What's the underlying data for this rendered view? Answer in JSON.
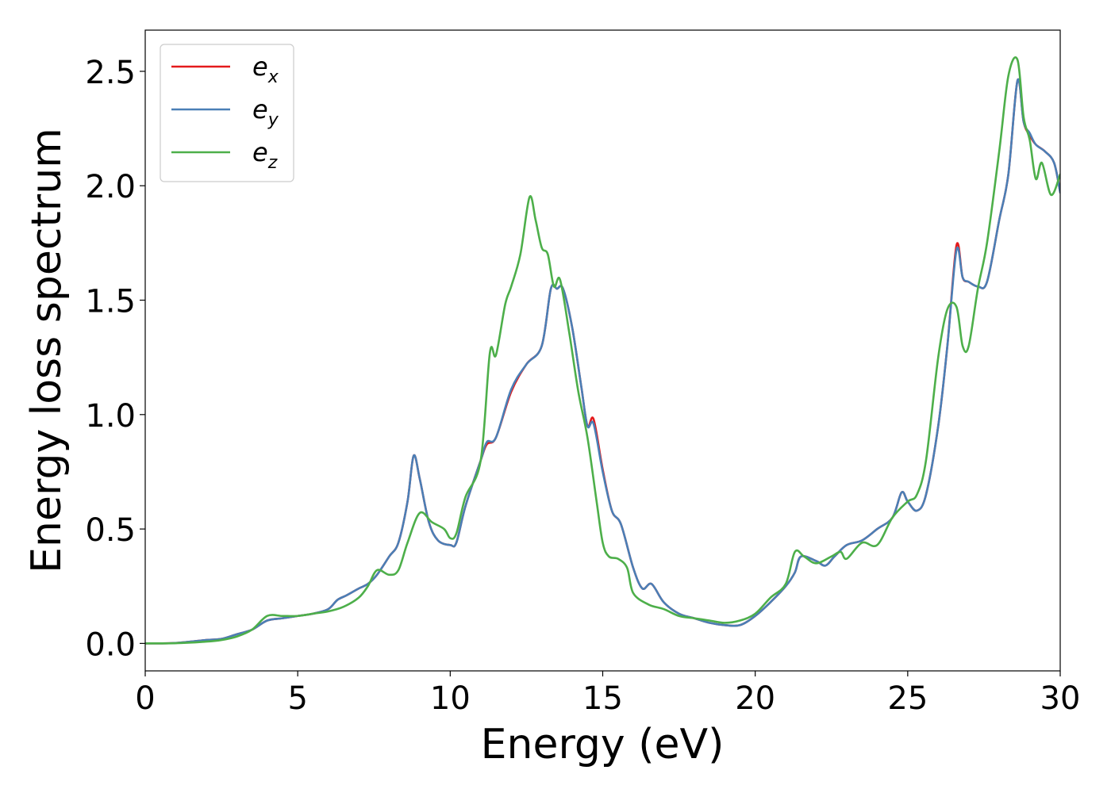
{
  "chart_data": {
    "type": "line",
    "title": "",
    "xlabel": "Energy (eV)",
    "ylabel": "Energy loss spectrum",
    "xlim": [
      0,
      30
    ],
    "ylim": [
      -0.12,
      2.68
    ],
    "xticks": [
      0,
      5,
      10,
      15,
      20,
      25,
      30
    ],
    "xtick_labels": [
      "0",
      "5",
      "10",
      "15",
      "20",
      "25",
      "30"
    ],
    "yticks": [
      0.0,
      0.5,
      1.0,
      1.5,
      2.0,
      2.5
    ],
    "ytick_labels": [
      "0.0",
      "0.5",
      "1.0",
      "1.5",
      "2.0",
      "2.5"
    ],
    "grid": false,
    "legend_position": "top-left",
    "series": [
      {
        "name": "e_x",
        "label_main": "e",
        "label_sub": "x",
        "color": "#e41a1c",
        "points": [
          [
            0,
            0
          ],
          [
            1,
            0.002
          ],
          [
            2,
            0.015
          ],
          [
            2.5,
            0.02
          ],
          [
            3,
            0.04
          ],
          [
            3.5,
            0.06
          ],
          [
            4,
            0.1
          ],
          [
            4.5,
            0.11
          ],
          [
            5,
            0.12
          ],
          [
            5.5,
            0.13
          ],
          [
            6,
            0.15
          ],
          [
            6.3,
            0.19
          ],
          [
            6.6,
            0.21
          ],
          [
            7,
            0.24
          ],
          [
            7.3,
            0.26
          ],
          [
            7.6,
            0.3
          ],
          [
            8,
            0.38
          ],
          [
            8.3,
            0.44
          ],
          [
            8.6,
            0.62
          ],
          [
            8.8,
            0.82
          ],
          [
            9,
            0.72
          ],
          [
            9.3,
            0.53
          ],
          [
            9.6,
            0.45
          ],
          [
            10,
            0.43
          ],
          [
            10.2,
            0.44
          ],
          [
            10.5,
            0.6
          ],
          [
            11,
            0.8
          ],
          [
            11.2,
            0.87
          ],
          [
            11.5,
            0.9
          ],
          [
            12,
            1.1
          ],
          [
            12.5,
            1.22
          ],
          [
            13,
            1.3
          ],
          [
            13.3,
            1.55
          ],
          [
            13.5,
            1.55
          ],
          [
            13.7,
            1.55
          ],
          [
            14,
            1.38
          ],
          [
            14.3,
            1.12
          ],
          [
            14.5,
            0.95
          ],
          [
            14.7,
            0.98
          ],
          [
            15,
            0.76
          ],
          [
            15.3,
            0.58
          ],
          [
            15.6,
            0.52
          ],
          [
            16,
            0.33
          ],
          [
            16.3,
            0.24
          ],
          [
            16.6,
            0.26
          ],
          [
            17,
            0.18
          ],
          [
            17.5,
            0.13
          ],
          [
            18,
            0.11
          ],
          [
            18.5,
            0.09
          ],
          [
            19,
            0.08
          ],
          [
            19.5,
            0.08
          ],
          [
            20,
            0.12
          ],
          [
            20.5,
            0.18
          ],
          [
            21,
            0.25
          ],
          [
            21.3,
            0.31
          ],
          [
            21.5,
            0.38
          ],
          [
            22,
            0.36
          ],
          [
            22.3,
            0.34
          ],
          [
            22.6,
            0.38
          ],
          [
            23,
            0.43
          ],
          [
            23.5,
            0.45
          ],
          [
            24,
            0.5
          ],
          [
            24.5,
            0.55
          ],
          [
            24.8,
            0.66
          ],
          [
            25,
            0.62
          ],
          [
            25.3,
            0.58
          ],
          [
            25.6,
            0.65
          ],
          [
            26,
            0.95
          ],
          [
            26.3,
            1.3
          ],
          [
            26.6,
            1.74
          ],
          [
            26.8,
            1.6
          ],
          [
            27,
            1.58
          ],
          [
            27.3,
            1.56
          ],
          [
            27.6,
            1.58
          ],
          [
            28,
            1.85
          ],
          [
            28.3,
            2.05
          ],
          [
            28.6,
            2.46
          ],
          [
            28.8,
            2.28
          ],
          [
            29,
            2.22
          ],
          [
            29.2,
            2.18
          ],
          [
            29.5,
            2.15
          ],
          [
            29.8,
            2.1
          ],
          [
            30,
            1.97
          ]
        ]
      },
      {
        "name": "e_y",
        "label_main": "e",
        "label_sub": "y",
        "color": "#4a7fb6",
        "points": [
          [
            0,
            0
          ],
          [
            1,
            0.002
          ],
          [
            2,
            0.015
          ],
          [
            2.5,
            0.02
          ],
          [
            3,
            0.04
          ],
          [
            3.5,
            0.06
          ],
          [
            4,
            0.1
          ],
          [
            4.5,
            0.11
          ],
          [
            5,
            0.12
          ],
          [
            5.5,
            0.13
          ],
          [
            6,
            0.15
          ],
          [
            6.3,
            0.19
          ],
          [
            6.6,
            0.21
          ],
          [
            7,
            0.24
          ],
          [
            7.3,
            0.26
          ],
          [
            7.6,
            0.3
          ],
          [
            8,
            0.38
          ],
          [
            8.3,
            0.44
          ],
          [
            8.6,
            0.62
          ],
          [
            8.8,
            0.82
          ],
          [
            9,
            0.72
          ],
          [
            9.3,
            0.53
          ],
          [
            9.6,
            0.45
          ],
          [
            10,
            0.43
          ],
          [
            10.2,
            0.44
          ],
          [
            10.5,
            0.6
          ],
          [
            11,
            0.8
          ],
          [
            11.2,
            0.88
          ],
          [
            11.5,
            0.9
          ],
          [
            12,
            1.11
          ],
          [
            12.5,
            1.22
          ],
          [
            13,
            1.3
          ],
          [
            13.3,
            1.55
          ],
          [
            13.5,
            1.55
          ],
          [
            13.7,
            1.55
          ],
          [
            14,
            1.38
          ],
          [
            14.3,
            1.12
          ],
          [
            14.5,
            0.95
          ],
          [
            14.7,
            0.96
          ],
          [
            15,
            0.75
          ],
          [
            15.3,
            0.58
          ],
          [
            15.6,
            0.52
          ],
          [
            16,
            0.33
          ],
          [
            16.3,
            0.24
          ],
          [
            16.6,
            0.26
          ],
          [
            17,
            0.18
          ],
          [
            17.5,
            0.13
          ],
          [
            18,
            0.11
          ],
          [
            18.5,
            0.09
          ],
          [
            19,
            0.08
          ],
          [
            19.5,
            0.08
          ],
          [
            20,
            0.12
          ],
          [
            20.5,
            0.18
          ],
          [
            21,
            0.25
          ],
          [
            21.3,
            0.31
          ],
          [
            21.5,
            0.38
          ],
          [
            22,
            0.36
          ],
          [
            22.3,
            0.34
          ],
          [
            22.6,
            0.38
          ],
          [
            23,
            0.43
          ],
          [
            23.5,
            0.45
          ],
          [
            24,
            0.5
          ],
          [
            24.5,
            0.55
          ],
          [
            24.8,
            0.66
          ],
          [
            25,
            0.62
          ],
          [
            25.3,
            0.58
          ],
          [
            25.6,
            0.65
          ],
          [
            26,
            0.95
          ],
          [
            26.3,
            1.3
          ],
          [
            26.6,
            1.72
          ],
          [
            26.8,
            1.6
          ],
          [
            27,
            1.58
          ],
          [
            27.3,
            1.56
          ],
          [
            27.6,
            1.58
          ],
          [
            28,
            1.85
          ],
          [
            28.3,
            2.05
          ],
          [
            28.6,
            2.46
          ],
          [
            28.8,
            2.28
          ],
          [
            29,
            2.23
          ],
          [
            29.2,
            2.18
          ],
          [
            29.5,
            2.15
          ],
          [
            29.8,
            2.1
          ],
          [
            30,
            1.97
          ]
        ]
      },
      {
        "name": "e_z",
        "label_main": "e",
        "label_sub": "z",
        "color": "#4daf4a",
        "points": [
          [
            0,
            0
          ],
          [
            1,
            0.001
          ],
          [
            2,
            0.008
          ],
          [
            2.5,
            0.015
          ],
          [
            3,
            0.03
          ],
          [
            3.5,
            0.06
          ],
          [
            4,
            0.12
          ],
          [
            4.5,
            0.12
          ],
          [
            5,
            0.12
          ],
          [
            5.5,
            0.13
          ],
          [
            6,
            0.14
          ],
          [
            6.5,
            0.16
          ],
          [
            7,
            0.2
          ],
          [
            7.3,
            0.25
          ],
          [
            7.6,
            0.32
          ],
          [
            8,
            0.3
          ],
          [
            8.3,
            0.32
          ],
          [
            8.6,
            0.44
          ],
          [
            9,
            0.57
          ],
          [
            9.4,
            0.53
          ],
          [
            9.8,
            0.5
          ],
          [
            10,
            0.46
          ],
          [
            10.2,
            0.48
          ],
          [
            10.5,
            0.64
          ],
          [
            11,
            0.8
          ],
          [
            11.3,
            1.27
          ],
          [
            11.5,
            1.26
          ],
          [
            11.8,
            1.48
          ],
          [
            12,
            1.56
          ],
          [
            12.3,
            1.7
          ],
          [
            12.6,
            1.95
          ],
          [
            12.8,
            1.85
          ],
          [
            13,
            1.73
          ],
          [
            13.2,
            1.7
          ],
          [
            13.4,
            1.56
          ],
          [
            13.6,
            1.59
          ],
          [
            13.9,
            1.36
          ],
          [
            14.2,
            1.1
          ],
          [
            14.5,
            0.9
          ],
          [
            14.8,
            0.62
          ],
          [
            15,
            0.44
          ],
          [
            15.2,
            0.38
          ],
          [
            15.5,
            0.37
          ],
          [
            15.8,
            0.33
          ],
          [
            16,
            0.22
          ],
          [
            16.5,
            0.17
          ],
          [
            17,
            0.15
          ],
          [
            17.5,
            0.12
          ],
          [
            18,
            0.11
          ],
          [
            18.5,
            0.1
          ],
          [
            19,
            0.09
          ],
          [
            19.5,
            0.1
          ],
          [
            20,
            0.13
          ],
          [
            20.5,
            0.2
          ],
          [
            21,
            0.26
          ],
          [
            21.3,
            0.4
          ],
          [
            21.6,
            0.38
          ],
          [
            22,
            0.35
          ],
          [
            22.5,
            0.38
          ],
          [
            22.8,
            0.4
          ],
          [
            23,
            0.37
          ],
          [
            23.5,
            0.44
          ],
          [
            24,
            0.43
          ],
          [
            24.5,
            0.55
          ],
          [
            25,
            0.62
          ],
          [
            25.3,
            0.65
          ],
          [
            25.6,
            0.8
          ],
          [
            26,
            1.25
          ],
          [
            26.3,
            1.46
          ],
          [
            26.6,
            1.47
          ],
          [
            26.8,
            1.3
          ],
          [
            27,
            1.3
          ],
          [
            27.3,
            1.55
          ],
          [
            27.6,
            1.75
          ],
          [
            28,
            2.15
          ],
          [
            28.3,
            2.48
          ],
          [
            28.6,
            2.55
          ],
          [
            28.8,
            2.3
          ],
          [
            29,
            2.2
          ],
          [
            29.2,
            2.03
          ],
          [
            29.4,
            2.1
          ],
          [
            29.7,
            1.96
          ],
          [
            30,
            2.05
          ]
        ]
      }
    ]
  }
}
